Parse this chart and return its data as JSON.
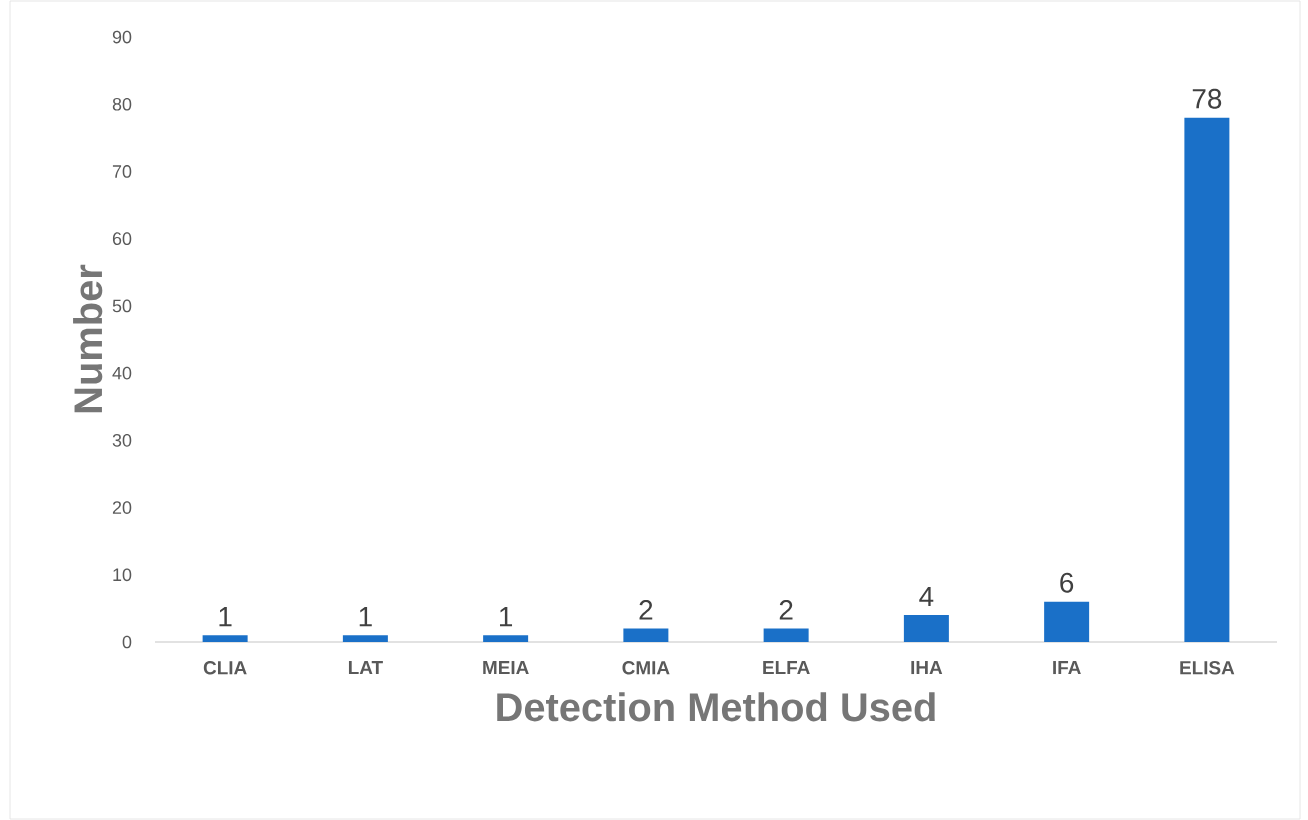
{
  "chart_data": {
    "type": "bar",
    "xlabel": "Detection Method Used",
    "ylabel": "Number",
    "categories": [
      "CLIA",
      "LAT",
      "MEIA",
      "CMIA",
      "ELFA",
      "IHA",
      "IFA",
      "ELISA"
    ],
    "values": [
      1,
      1,
      1,
      2,
      2,
      4,
      6,
      78
    ],
    "color": "#1a70c8",
    "ylim": [
      0,
      90
    ],
    "yticks": [
      0,
      10,
      20,
      30,
      40,
      50,
      60,
      70,
      80,
      90
    ],
    "data_labels": true,
    "grid": false
  }
}
